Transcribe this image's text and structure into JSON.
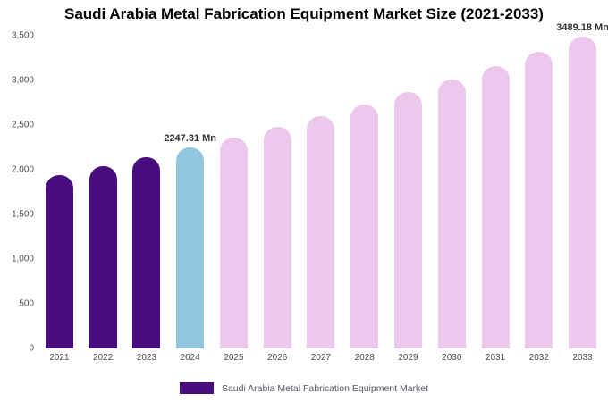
{
  "chart_data": {
    "type": "bar",
    "title": "Saudi Arabia Metal Fabrication Equipment Market Size (2021-2033)",
    "categories": [
      "2021",
      "2022",
      "2023",
      "2024",
      "2025",
      "2026",
      "2027",
      "2028",
      "2029",
      "2030",
      "2031",
      "2032",
      "2033"
    ],
    "values": [
      1940,
      2040,
      2140,
      2247.31,
      2360,
      2478,
      2602,
      2732,
      2868,
      3012,
      3162,
      3320,
      3489.18
    ],
    "unit": "Mn",
    "xlabel": "",
    "ylabel": "",
    "ylim": [
      0,
      3500
    ],
    "ytick_values": [
      0,
      500,
      1000,
      1500,
      2000,
      2500,
      3000,
      3500
    ],
    "ytick_labels": [
      "0",
      "500",
      "1,000",
      "1,500",
      "2,000",
      "2,500",
      "3,000",
      "3,500"
    ],
    "grid": "off",
    "legend_position": "bottom",
    "bar_colors": [
      "#4a0d7f",
      "#4a0d7f",
      "#4a0d7f",
      "#92c5e0",
      "#ebc8ec",
      "#ebc8ec",
      "#ebc8ec",
      "#ebc8ec",
      "#ebc8ec",
      "#ebc8ec",
      "#ebc8ec",
      "#ebc8ec",
      "#ebc8ec"
    ],
    "annotations": [
      {
        "category": "2024",
        "text": "2247.31 Mn"
      },
      {
        "category": "2033",
        "text": "3489.18 Mn"
      }
    ]
  },
  "legend": {
    "label": "Saudi Arabia Metal Fabrication Equipment Market",
    "swatch_color": "#4a0d7f"
  },
  "colors": {
    "historical_bar": "#4a0d7f",
    "highlight_bar": "#92c5e0",
    "forecast_bar": "#ebc8ec",
    "axis_text": "#4d4d4d",
    "annotation_text": "#333333"
  }
}
